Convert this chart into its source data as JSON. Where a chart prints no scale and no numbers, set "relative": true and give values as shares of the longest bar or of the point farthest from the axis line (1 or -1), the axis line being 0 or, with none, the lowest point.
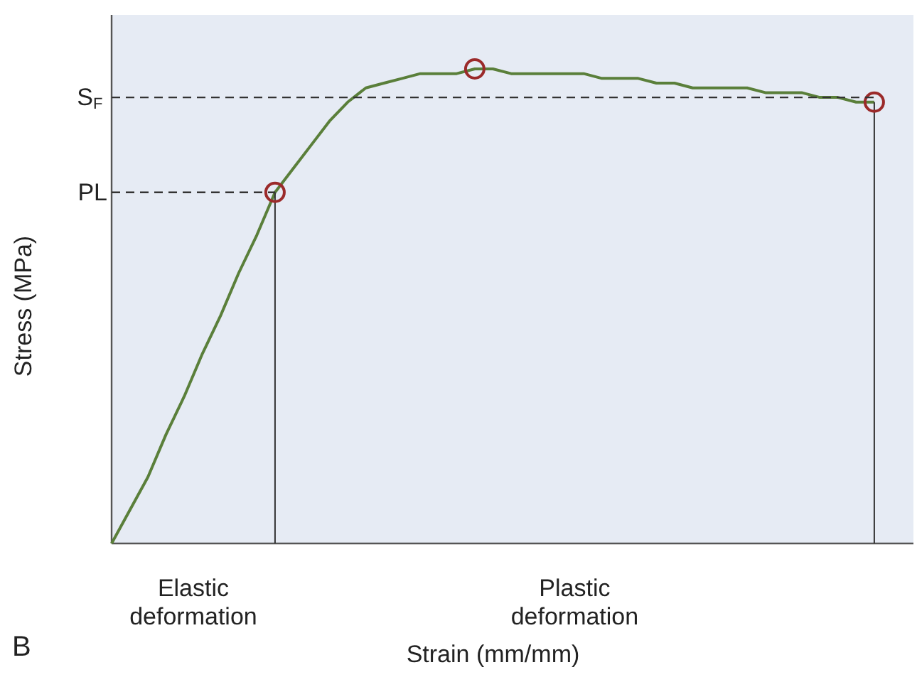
{
  "chart_data": {
    "type": "line",
    "relative": true,
    "xlabel": "Strain (mm/mm)",
    "ylabel": "Stress (MPa)",
    "categories": [
      null,
      null,
      null,
      null,
      null,
      null,
      null,
      null,
      null,
      null,
      null,
      null,
      null,
      null,
      null,
      null,
      null,
      null,
      null,
      null,
      null,
      null,
      null,
      null,
      null,
      null,
      null,
      null,
      null,
      null,
      null,
      null,
      null,
      null,
      null,
      null,
      null,
      null,
      null,
      null,
      null,
      null,
      null
    ],
    "series": [
      {
        "type": "line",
        "color": "#5a7f3a",
        "values": [
          0,
          0.07,
          0.14,
          0.23,
          0.31,
          0.4,
          0.48,
          0.57,
          0.65,
          0.74,
          0.79,
          0.84,
          0.89,
          0.93,
          0.96,
          0.97,
          0.98,
          0.99,
          0.99,
          0.99,
          1.0,
          1.0,
          0.99,
          0.99,
          0.99,
          0.99,
          0.99,
          0.98,
          0.98,
          0.98,
          0.97,
          0.97,
          0.96,
          0.96,
          0.96,
          0.96,
          0.95,
          0.95,
          0.95,
          0.94,
          0.94,
          0.93,
          0.93
        ]
      }
    ],
    "ref_lines": [
      {
        "axis": "y",
        "value": 0.94,
        "label": "S$_{F}$",
        "line_style": "dashed",
        "color": "#333333"
      },
      {
        "axis": "y",
        "value": 0.74,
        "label": "PL",
        "line_style": "dashed",
        "color": "#333333"
      }
    ],
    "annotations": [
      "Elastic deformation",
      "Plastic deformation",
      "B"
    ]
  }
}
